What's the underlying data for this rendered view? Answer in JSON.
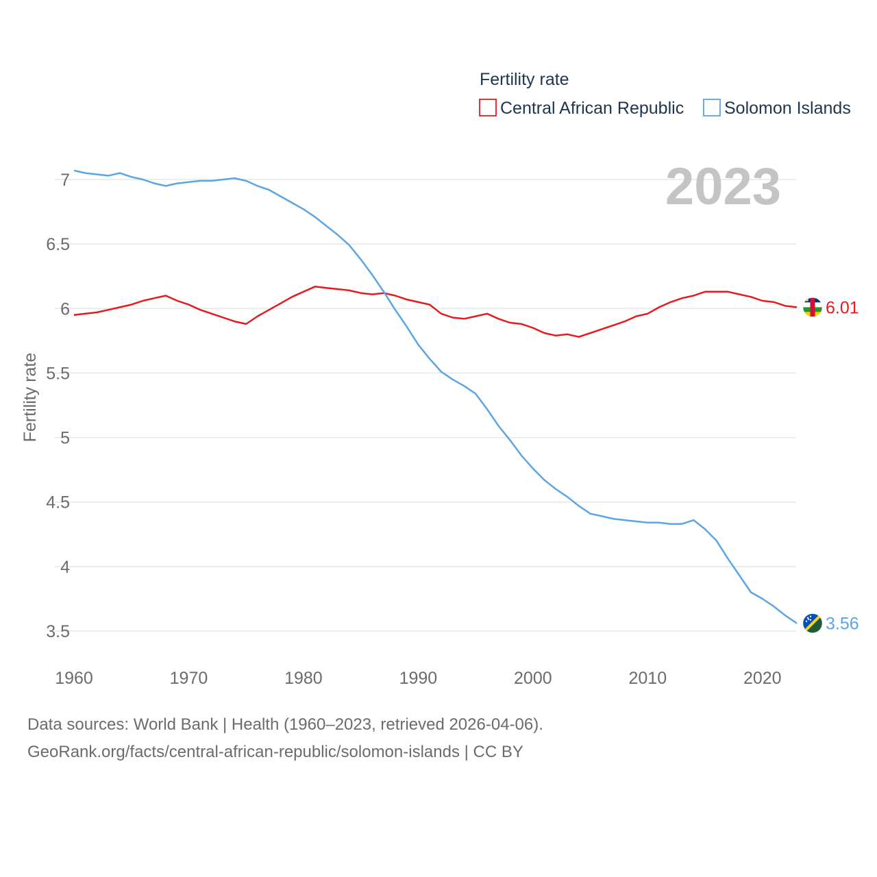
{
  "chart_data": {
    "type": "line",
    "legend_title": "Fertility rate",
    "ylabel": "Fertility rate",
    "xlabel": "",
    "year_label": "2023",
    "ylim": [
      3.3,
      7.2
    ],
    "xlim": [
      1960,
      2023
    ],
    "yticks": [
      3.5,
      4,
      4.5,
      5,
      5.5,
      6,
      6.5,
      7
    ],
    "ytick_labels": [
      "3.5",
      "4",
      "4.5",
      "5",
      "5.5",
      "6",
      "6.5",
      "7"
    ],
    "xticks": [
      1960,
      1970,
      1980,
      1990,
      2000,
      2010,
      2020
    ],
    "xtick_labels": [
      "1960",
      "1970",
      "1980",
      "1990",
      "2000",
      "2010",
      "2020"
    ],
    "grid": true,
    "legend_position": "top-right",
    "x": [
      1960,
      1961,
      1962,
      1963,
      1964,
      1965,
      1966,
      1967,
      1968,
      1969,
      1970,
      1971,
      1972,
      1973,
      1974,
      1975,
      1976,
      1977,
      1978,
      1979,
      1980,
      1981,
      1982,
      1983,
      1984,
      1985,
      1986,
      1987,
      1988,
      1989,
      1990,
      1991,
      1992,
      1993,
      1994,
      1995,
      1996,
      1997,
      1998,
      1999,
      2000,
      2001,
      2002,
      2003,
      2004,
      2005,
      2006,
      2007,
      2008,
      2009,
      2010,
      2011,
      2012,
      2013,
      2014,
      2015,
      2016,
      2017,
      2018,
      2019,
      2020,
      2021,
      2022,
      2023
    ],
    "series": [
      {
        "name": "Central African Republic",
        "color": "#e41a1c",
        "end_label": "6.01",
        "flag": "central-african-republic-flag-icon",
        "values": [
          5.95,
          5.96,
          5.97,
          5.99,
          6.01,
          6.03,
          6.06,
          6.08,
          6.1,
          6.06,
          6.03,
          5.99,
          5.96,
          5.93,
          5.9,
          5.88,
          5.94,
          5.99,
          6.04,
          6.09,
          6.13,
          6.17,
          6.16,
          6.15,
          6.14,
          6.12,
          6.11,
          6.12,
          6.1,
          6.07,
          6.05,
          6.03,
          5.96,
          5.93,
          5.92,
          5.94,
          5.96,
          5.92,
          5.89,
          5.88,
          5.85,
          5.81,
          5.79,
          5.8,
          5.78,
          5.81,
          5.84,
          5.87,
          5.9,
          5.94,
          5.96,
          6.01,
          6.05,
          6.08,
          6.1,
          6.13,
          6.13,
          6.13,
          6.11,
          6.09,
          6.06,
          6.05,
          6.02,
          6.01
        ]
      },
      {
        "name": "Solomon Islands",
        "color": "#5aa5e6",
        "end_label": "3.56",
        "flag": "solomon-islands-flag-icon",
        "values": [
          7.07,
          7.05,
          7.04,
          7.03,
          7.05,
          7.02,
          7.0,
          6.97,
          6.95,
          6.97,
          6.98,
          6.99,
          6.99,
          7.0,
          7.01,
          6.99,
          6.95,
          6.92,
          6.87,
          6.82,
          6.77,
          6.71,
          6.64,
          6.57,
          6.49,
          6.38,
          6.26,
          6.13,
          5.99,
          5.86,
          5.72,
          5.61,
          5.51,
          5.45,
          5.4,
          5.34,
          5.22,
          5.09,
          4.98,
          4.86,
          4.76,
          4.67,
          4.6,
          4.54,
          4.47,
          4.41,
          4.39,
          4.37,
          4.36,
          4.35,
          4.34,
          4.34,
          4.33,
          4.33,
          4.36,
          4.29,
          4.2,
          4.06,
          3.93,
          3.8,
          3.75,
          3.69,
          3.62,
          3.56
        ]
      }
    ]
  },
  "source": {
    "line1": "Data sources: World Bank | Health (1960–2023, retrieved 2026-04-06).",
    "line2": "GeoRank.org/facts/central-african-republic/solomon-islands | CC BY"
  }
}
